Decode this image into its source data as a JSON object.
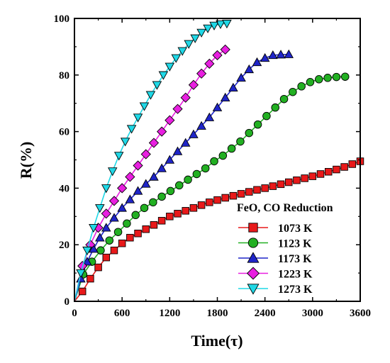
{
  "chart_data": {
    "type": "line",
    "xlabel": "Time(τ)",
    "ylabel": "R(%)",
    "xlim": [
      0,
      3600
    ],
    "ylim": [
      0,
      100
    ],
    "xticks": [
      "0",
      "600",
      "1200",
      "1800",
      "2400",
      "3000",
      "3600"
    ],
    "yticks": [
      "0",
      "20",
      "40",
      "60",
      "80",
      "100"
    ],
    "grid": false,
    "legend": {
      "title": "FeO, CO Reduction",
      "position": "bottom-right"
    },
    "series": [
      {
        "name": "1073 K",
        "color": "#e8191a",
        "marker": "square",
        "x": [
          0,
          100,
          200,
          300,
          400,
          500,
          600,
          700,
          800,
          900,
          1000,
          1100,
          1200,
          1300,
          1400,
          1500,
          1600,
          1700,
          1800,
          1900,
          2000,
          2100,
          2200,
          2300,
          2400,
          2500,
          2600,
          2700,
          2800,
          2900,
          3000,
          3100,
          3200,
          3300,
          3400,
          3500,
          3600
        ],
        "y": [
          0,
          3.5,
          8,
          12,
          15.5,
          18,
          20.5,
          22.5,
          24,
          25.5,
          27,
          28.5,
          30,
          31,
          32,
          33,
          34,
          35,
          35.8,
          36.6,
          37.3,
          38,
          38.7,
          39.4,
          40,
          40.7,
          41.4,
          42.1,
          42.8,
          43.5,
          44.2,
          45,
          45.8,
          46.6,
          47.5,
          48.5,
          49.5
        ]
      },
      {
        "name": "1123 K",
        "color": "#22b022",
        "marker": "circle",
        "x": [
          0,
          110,
          220,
          330,
          440,
          550,
          660,
          770,
          880,
          990,
          1100,
          1210,
          1320,
          1430,
          1540,
          1650,
          1760,
          1870,
          1980,
          2090,
          2200,
          2310,
          2420,
          2530,
          2640,
          2750,
          2860,
          2970,
          3080,
          3190,
          3300,
          3410
        ],
        "y": [
          0,
          9.5,
          14,
          18,
          21.5,
          24.5,
          27.5,
          30.5,
          33,
          35,
          37,
          39,
          41,
          43,
          45,
          47,
          49.5,
          51.5,
          54,
          56.5,
          59.5,
          62.5,
          65.5,
          68.5,
          71.5,
          74,
          76,
          77.5,
          78.5,
          79,
          79.3,
          79.4
        ]
      },
      {
        "name": "1173 K",
        "color": "#1f25c8",
        "marker": "triangle-up",
        "x": [
          0,
          80,
          160,
          240,
          320,
          400,
          500,
          600,
          700,
          800,
          900,
          1000,
          1100,
          1200,
          1300,
          1400,
          1500,
          1600,
          1700,
          1800,
          1900,
          2000,
          2100,
          2200,
          2300,
          2400,
          2500,
          2600,
          2700
        ],
        "y": [
          0,
          8,
          14,
          18.5,
          22.5,
          26,
          29.5,
          33,
          36,
          39,
          41.5,
          44,
          47,
          50,
          53,
          56,
          59,
          62,
          65,
          68.5,
          72,
          75.5,
          79,
          82,
          84.5,
          86,
          87,
          87.2,
          87.3
        ]
      },
      {
        "name": "1223 K",
        "color": "#e81fe0",
        "marker": "diamond",
        "x": [
          0,
          100,
          200,
          300,
          400,
          500,
          600,
          700,
          800,
          900,
          1000,
          1100,
          1200,
          1300,
          1400,
          1500,
          1600,
          1700,
          1800,
          1900
        ],
        "y": [
          0,
          12.5,
          20,
          26,
          31,
          35.5,
          40,
          44,
          48,
          52,
          56,
          60,
          64,
          68,
          72,
          76.5,
          80.5,
          84,
          87,
          89
        ]
      },
      {
        "name": "1273 K",
        "color": "#1fd8e6",
        "marker": "triangle-down",
        "x": [
          0,
          80,
          160,
          240,
          320,
          400,
          480,
          560,
          640,
          720,
          800,
          880,
          960,
          1040,
          1120,
          1200,
          1280,
          1360,
          1440,
          1520,
          1600,
          1680,
          1760,
          1840,
          1920
        ],
        "y": [
          0,
          10,
          18,
          26,
          33,
          40,
          46,
          51.5,
          56.5,
          61,
          65,
          69,
          73,
          76.5,
          80,
          83,
          86,
          88.5,
          91,
          93,
          95,
          96.5,
          97.5,
          98,
          98.2
        ]
      }
    ]
  }
}
